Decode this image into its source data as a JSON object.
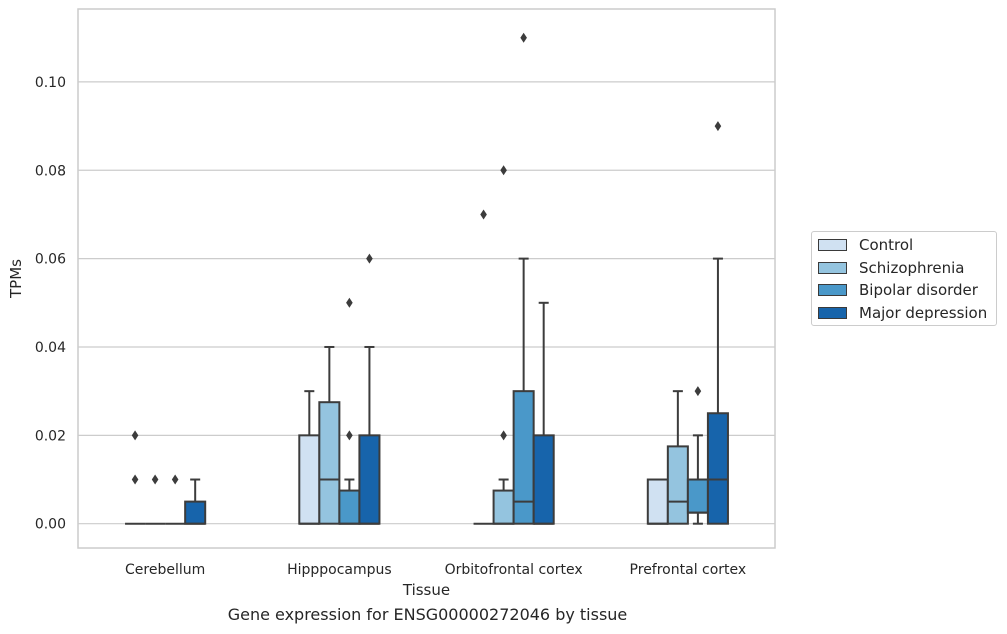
{
  "chart_data": {
    "type": "box",
    "title": "",
    "caption": "Gene expression for ENSG00000272046 by tissue",
    "xlabel": "Tissue",
    "ylabel": "TPMs",
    "ylim": [
      -0.0055,
      0.1165
    ],
    "yticks": [
      0.0,
      0.02,
      0.04,
      0.06,
      0.08,
      0.1
    ],
    "ytick_labels": [
      "0.00",
      "0.02",
      "0.04",
      "0.06",
      "0.08",
      "0.10"
    ],
    "grid": true,
    "legend_position": "right",
    "categories": [
      "Cerebellum",
      "Hipppocampus",
      "Orbitofrontal cortex",
      "Prefrontal cortex"
    ],
    "series": [
      {
        "name": "Control",
        "color": "#d0e1f2",
        "boxes": [
          {
            "q1": 0.0,
            "median": 0.0,
            "q3": 0.0,
            "whisker_low": 0.0,
            "whisker_high": 0.0,
            "outliers": [
              0.01,
              0.02
            ]
          },
          {
            "q1": 0.0,
            "median": 0.0,
            "q3": 0.02,
            "whisker_low": 0.0,
            "whisker_high": 0.03,
            "outliers": []
          },
          {
            "q1": 0.0,
            "median": 0.0,
            "q3": 0.0,
            "whisker_low": 0.0,
            "whisker_high": 0.0,
            "outliers": [
              0.07
            ]
          },
          {
            "q1": 0.0,
            "median": 0.0,
            "q3": 0.01,
            "whisker_low": 0.0,
            "whisker_high": 0.01,
            "outliers": []
          }
        ]
      },
      {
        "name": "Schizophrenia",
        "color": "#94c4df",
        "boxes": [
          {
            "q1": 0.0,
            "median": 0.0,
            "q3": 0.0,
            "whisker_low": 0.0,
            "whisker_high": 0.0,
            "outliers": [
              0.01
            ]
          },
          {
            "q1": 0.0,
            "median": 0.01,
            "q3": 0.0275,
            "whisker_low": 0.0,
            "whisker_high": 0.04,
            "outliers": []
          },
          {
            "q1": 0.0,
            "median": 0.0,
            "q3": 0.0075,
            "whisker_low": 0.0,
            "whisker_high": 0.01,
            "outliers": [
              0.02,
              0.08
            ]
          },
          {
            "q1": 0.0,
            "median": 0.005,
            "q3": 0.0175,
            "whisker_low": 0.0,
            "whisker_high": 0.03,
            "outliers": []
          }
        ]
      },
      {
        "name": "Bipolar disorder",
        "color": "#4a98c9",
        "boxes": [
          {
            "q1": 0.0,
            "median": 0.0,
            "q3": 0.0,
            "whisker_low": 0.0,
            "whisker_high": 0.0,
            "outliers": [
              0.01
            ]
          },
          {
            "q1": 0.0,
            "median": 0.0,
            "q3": 0.0075,
            "whisker_low": 0.0,
            "whisker_high": 0.01,
            "outliers": [
              0.02,
              0.05
            ]
          },
          {
            "q1": 0.0,
            "median": 0.005,
            "q3": 0.03,
            "whisker_low": 0.0,
            "whisker_high": 0.06,
            "outliers": [
              0.11
            ]
          },
          {
            "q1": 0.0025,
            "median": 0.0025,
            "q3": 0.01,
            "whisker_low": 0.0,
            "whisker_high": 0.02,
            "outliers": [
              0.03
            ]
          }
        ]
      },
      {
        "name": "Major depression",
        "color": "#1764ab",
        "boxes": [
          {
            "q1": 0.0,
            "median": 0.0,
            "q3": 0.005,
            "whisker_low": 0.0,
            "whisker_high": 0.01,
            "outliers": []
          },
          {
            "q1": 0.0,
            "median": 0.0,
            "q3": 0.02,
            "whisker_low": 0.0,
            "whisker_high": 0.04,
            "outliers": [
              0.06
            ]
          },
          {
            "q1": 0.0,
            "median": 0.0,
            "q3": 0.02,
            "whisker_low": 0.0,
            "whisker_high": 0.05,
            "outliers": []
          },
          {
            "q1": 0.0,
            "median": 0.01,
            "q3": 0.025,
            "whisker_low": 0.0,
            "whisker_high": 0.06,
            "outliers": [
              0.09
            ]
          }
        ]
      }
    ]
  }
}
